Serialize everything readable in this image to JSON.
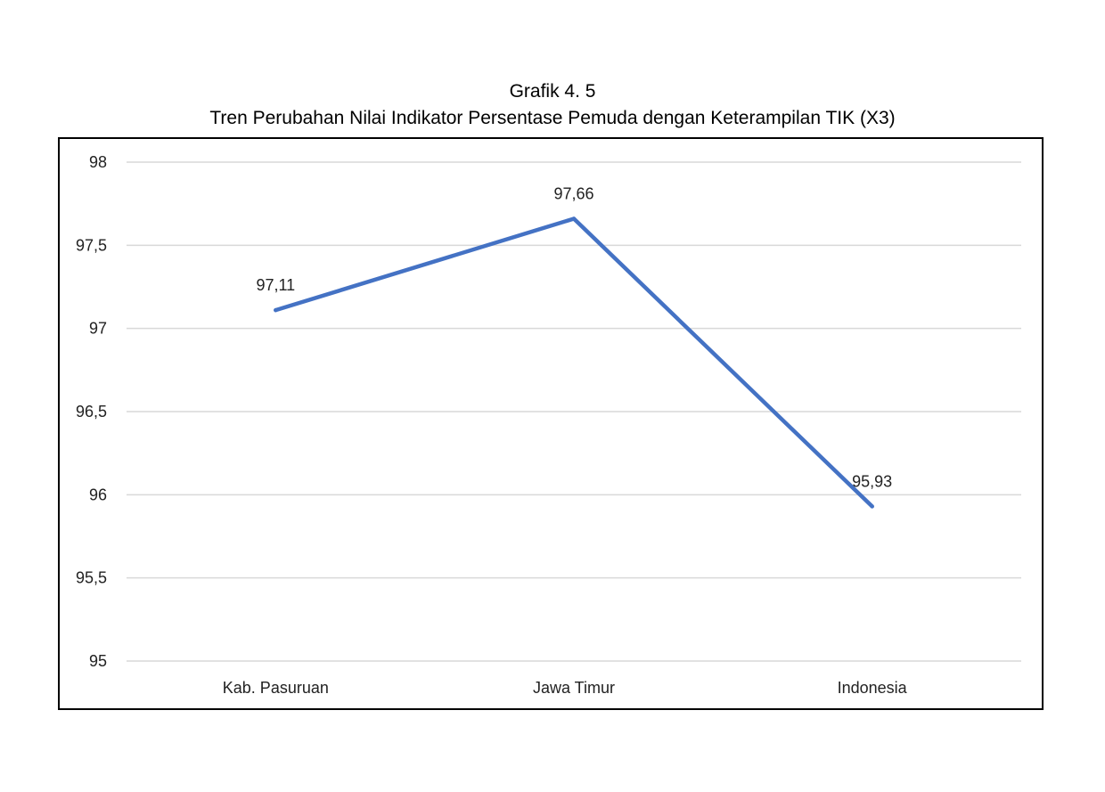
{
  "chart_data": {
    "type": "line",
    "title": "Grafik 4. 5",
    "subtitle": "Tren Perubahan Nilai Indikator Persentase Pemuda dengan Keterampilan TIK (X3)",
    "categories": [
      "Kab. Pasuruan",
      "Jawa Timur",
      "Indonesia"
    ],
    "series": [
      {
        "values": [
          97.11,
          97.66,
          95.93
        ],
        "color": "#4472c4"
      }
    ],
    "data_labels": [
      "97,11",
      "97,66",
      "95,93"
    ],
    "ylim": [
      95,
      98
    ],
    "yticks": [
      95,
      95.5,
      96,
      96.5,
      97,
      97.5,
      98
    ],
    "ytick_labels": [
      "95",
      "95,5",
      "96",
      "96,5",
      "97",
      "97,5",
      "98"
    ],
    "grid": true,
    "legend": "none",
    "xlabel": "",
    "ylabel": ""
  }
}
